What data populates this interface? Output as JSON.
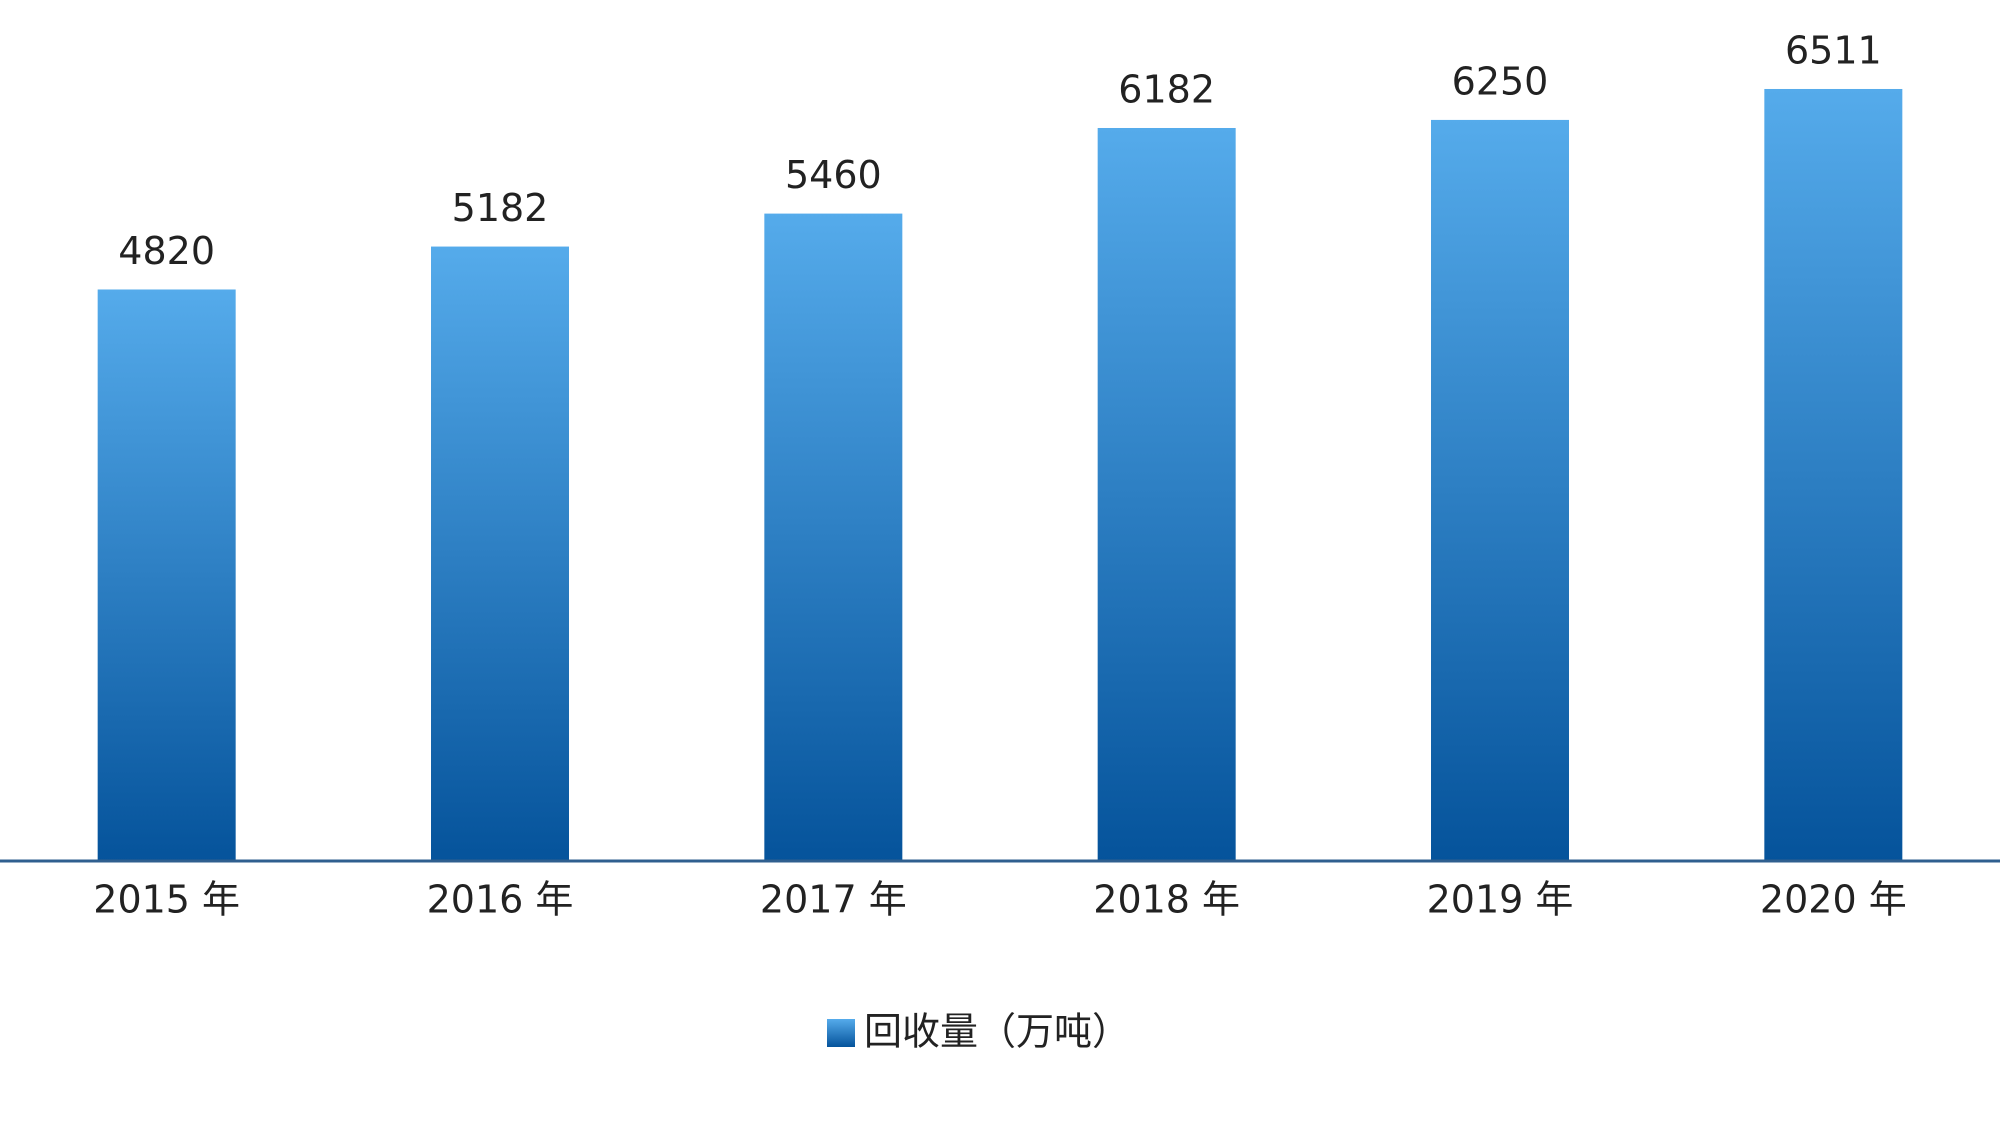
{
  "chart_data": {
    "type": "bar",
    "categories": [
      "2015 年",
      "2016 年",
      "2017 年",
      "2018 年",
      "2019 年",
      "2020 年"
    ],
    "series": [
      {
        "name": "回收量（万吨）",
        "color": "#1f74c0",
        "values": [
          4820,
          5182,
          5460,
          6182,
          6250,
          6511
        ]
      }
    ],
    "gradient": {
      "top": "#55abeb",
      "bottom": "#05539b"
    },
    "ylim": [
      0,
      7000
    ],
    "axis_color": "#2f5f8f"
  }
}
